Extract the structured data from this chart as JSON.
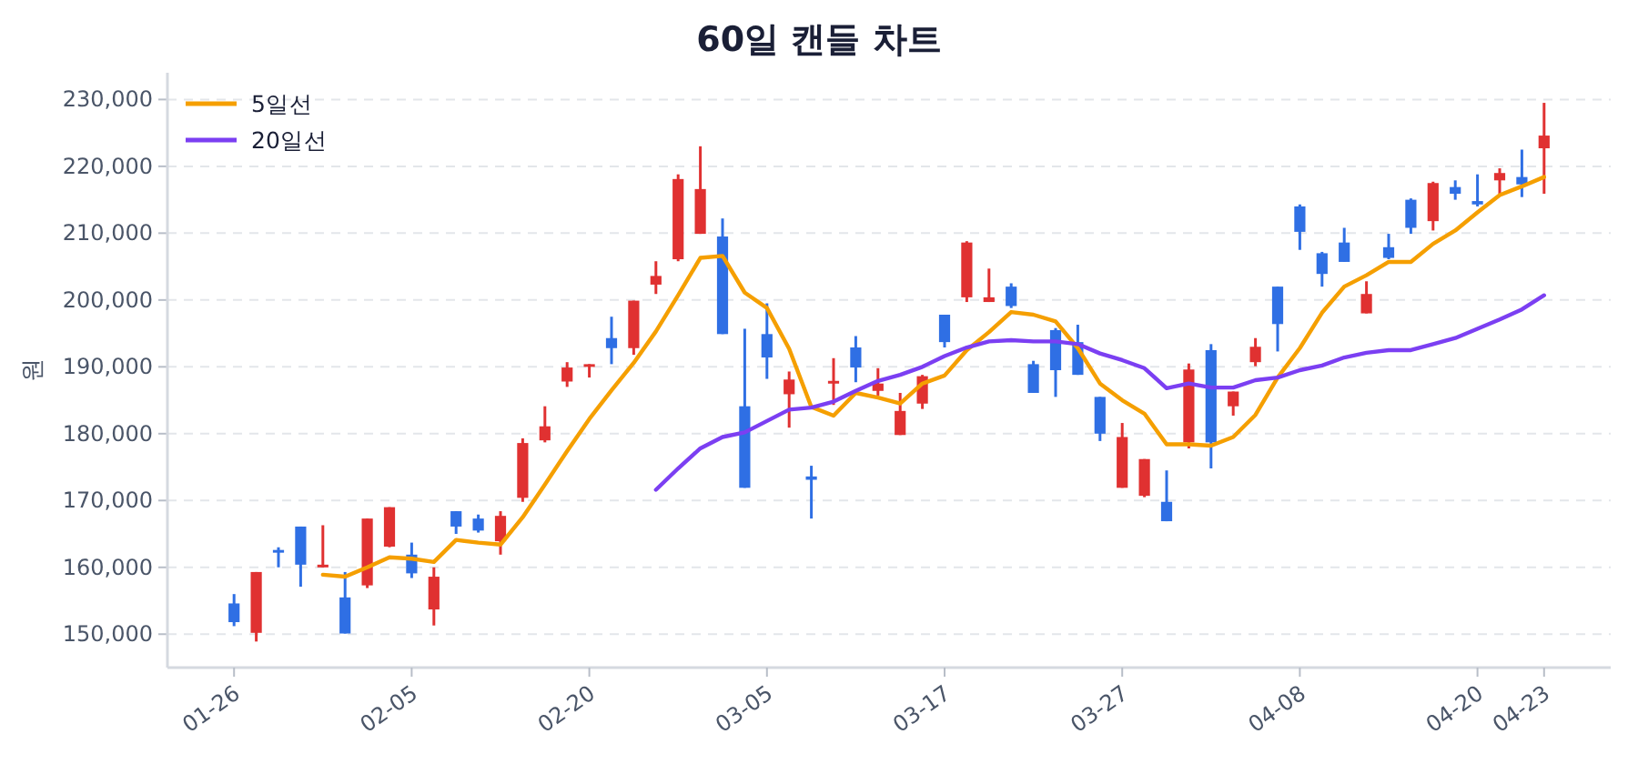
{
  "chart_data": {
    "type": "candlestick",
    "title": "60일 캔들 차트",
    "ylabel": "원",
    "categories": [
      "01-26",
      null,
      null,
      null,
      null,
      null,
      null,
      null,
      "02-05",
      null,
      null,
      null,
      null,
      null,
      null,
      null,
      "02-20",
      null,
      null,
      null,
      null,
      null,
      null,
      null,
      "03-05",
      null,
      null,
      null,
      null,
      null,
      null,
      null,
      "03-17",
      null,
      null,
      null,
      null,
      null,
      null,
      null,
      "03-27",
      null,
      null,
      null,
      null,
      null,
      null,
      null,
      "04-08",
      null,
      null,
      null,
      null,
      null,
      null,
      null,
      "04-20",
      null,
      null,
      "04-23"
    ],
    "ohlc": [
      [
        154600,
        156000,
        151200,
        151800
      ],
      [
        150200,
        159300,
        148900,
        159300
      ],
      [
        162600,
        163000,
        160000,
        162400
      ],
      [
        166100,
        166100,
        157100,
        160400
      ],
      [
        160000,
        166300,
        160000,
        160400
      ],
      [
        155500,
        159300,
        150100,
        150100
      ],
      [
        157300,
        167300,
        156900,
        167300
      ],
      [
        163100,
        169000,
        163000,
        169000
      ],
      [
        161900,
        163700,
        158400,
        159100
      ],
      [
        153700,
        160000,
        151300,
        158600
      ],
      [
        168400,
        168400,
        165000,
        166100
      ],
      [
        167300,
        167900,
        165200,
        165500
      ],
      [
        163900,
        168400,
        161900,
        167700
      ],
      [
        170400,
        179300,
        169800,
        178600
      ],
      [
        179000,
        184100,
        178700,
        181100
      ],
      [
        187800,
        190700,
        187000,
        189900
      ],
      [
        190000,
        190400,
        188400,
        190400
      ],
      [
        194300,
        197500,
        190400,
        192800
      ],
      [
        192800,
        199900,
        191800,
        199900
      ],
      [
        202300,
        205800,
        200900,
        203600
      ],
      [
        206100,
        218800,
        205800,
        218100
      ],
      [
        209900,
        223000,
        209900,
        216600
      ],
      [
        209500,
        212200,
        194900,
        194900
      ],
      [
        184100,
        195700,
        171900,
        171900
      ],
      [
        194900,
        199500,
        188200,
        191400
      ],
      [
        185900,
        189300,
        180900,
        188100
      ],
      [
        173600,
        175200,
        167300,
        173100
      ],
      [
        187500,
        191300,
        184300,
        187900
      ],
      [
        192900,
        194600,
        187700,
        189900
      ],
      [
        186400,
        189800,
        185700,
        187500
      ],
      [
        179800,
        186100,
        179800,
        183400
      ],
      [
        184500,
        188800,
        183700,
        188600
      ],
      [
        197800,
        197800,
        192900,
        193700
      ],
      [
        200400,
        208800,
        199700,
        208600
      ],
      [
        199700,
        204700,
        199700,
        200400
      ],
      [
        202000,
        202500,
        198800,
        199100
      ],
      [
        190400,
        190900,
        186100,
        186100
      ],
      [
        195500,
        195800,
        185500,
        189500
      ],
      [
        193700,
        196300,
        188800,
        188800
      ],
      [
        185500,
        185500,
        178900,
        180000
      ],
      [
        171900,
        181600,
        171900,
        179500
      ],
      [
        170700,
        176200,
        170500,
        176200
      ],
      [
        169800,
        174500,
        166900,
        166900
      ],
      [
        178700,
        190500,
        177800,
        189600
      ],
      [
        192500,
        193400,
        174800,
        178700
      ],
      [
        184100,
        186300,
        182700,
        186300
      ],
      [
        190700,
        194300,
        190100,
        193000
      ],
      [
        202000,
        202000,
        192300,
        196400
      ],
      [
        214000,
        214300,
        207500,
        210200
      ],
      [
        207000,
        207200,
        202000,
        203900
      ],
      [
        208600,
        210800,
        205700,
        205700
      ],
      [
        198000,
        202800,
        198000,
        200900
      ],
      [
        207900,
        209900,
        206100,
        206300
      ],
      [
        215000,
        215200,
        209900,
        210800
      ],
      [
        211800,
        217700,
        210400,
        217500
      ],
      [
        216900,
        217900,
        215000,
        215900
      ],
      [
        214800,
        218800,
        214000,
        214300
      ],
      [
        217900,
        219700,
        215900,
        219000
      ],
      [
        218400,
        222500,
        215400,
        217300
      ],
      [
        222700,
        229500,
        215900,
        224600
      ]
    ],
    "colors": [
      "#2f6fe4",
      "#e03131",
      "#2f6fe4",
      "#2f6fe4",
      "#e03131",
      "#2f6fe4",
      "#e03131",
      "#e03131",
      "#2f6fe4",
      "#e03131",
      "#2f6fe4",
      "#2f6fe4",
      "#e03131",
      "#e03131",
      "#e03131",
      "#e03131",
      "#e03131",
      "#2f6fe4",
      "#e03131",
      "#e03131",
      "#e03131",
      "#e03131",
      "#2f6fe4",
      "#2f6fe4",
      "#2f6fe4",
      "#e03131",
      "#2f6fe4",
      "#e03131",
      "#2f6fe4",
      "#e03131",
      "#e03131",
      "#e03131",
      "#2f6fe4",
      "#e03131",
      "#e03131",
      "#2f6fe4",
      "#2f6fe4",
      "#2f6fe4",
      "#2f6fe4",
      "#2f6fe4",
      "#e03131",
      "#e03131",
      "#2f6fe4",
      "#e03131",
      "#2f6fe4",
      "#e03131",
      "#e03131",
      "#2f6fe4",
      "#2f6fe4",
      "#2f6fe4",
      "#2f6fe4",
      "#e03131",
      "#2f6fe4",
      "#2f6fe4",
      "#e03131",
      "#2f6fe4",
      "#2f6fe4",
      "#e03131",
      "#2f6fe4",
      "#e03131"
    ],
    "series": [
      {
        "name": "5일선",
        "type": "line",
        "color": "#f59f00",
        "values": [
          null,
          null,
          null,
          null,
          158900,
          158600,
          160000,
          161500,
          161300,
          160800,
          164100,
          163700,
          163400,
          167500,
          172400,
          177400,
          182200,
          186500,
          190600,
          195300,
          200700,
          206300,
          206600,
          201100,
          198800,
          192700,
          184000,
          182700,
          186100,
          185400,
          184500,
          187500,
          188700,
          192500,
          195200,
          198200,
          197800,
          196800,
          192800,
          187500,
          185000,
          183000,
          178400,
          178400,
          178200,
          179500,
          182800,
          188400,
          192800,
          198100,
          202000,
          203700,
          205700,
          205700,
          208400,
          210400,
          213100,
          215700,
          217000,
          218400
        ]
      },
      {
        "name": "20일선",
        "type": "line",
        "color": "#7b3ff2",
        "values": [
          null,
          null,
          null,
          null,
          null,
          null,
          null,
          null,
          null,
          null,
          null,
          null,
          null,
          null,
          null,
          null,
          null,
          null,
          null,
          171600,
          174800,
          177800,
          179500,
          180200,
          181900,
          183600,
          183900,
          184800,
          186400,
          187900,
          188800,
          190000,
          191600,
          192900,
          193800,
          194000,
          193800,
          193800,
          193400,
          192000,
          191000,
          189800,
          186800,
          187500,
          186900,
          186900,
          188000,
          188400,
          189500,
          190200,
          191400,
          192100,
          192500,
          192500,
          193400,
          194300,
          195700,
          197100,
          198600,
          200700
        ]
      }
    ],
    "ylim": [
      145000,
      234000
    ],
    "yticks": [
      {
        "value": 150000,
        "label": "150,000"
      },
      {
        "value": 160000,
        "label": "160,000"
      },
      {
        "value": 170000,
        "label": "170,000"
      },
      {
        "value": 180000,
        "label": "180,000"
      },
      {
        "value": 190000,
        "label": "190,000"
      },
      {
        "value": 200000,
        "label": "200,000"
      },
      {
        "value": 210000,
        "label": "210,000"
      },
      {
        "value": 220000,
        "label": "220,000"
      },
      {
        "value": 230000,
        "label": "230,000"
      }
    ],
    "grid": "y",
    "legend": "top left"
  }
}
